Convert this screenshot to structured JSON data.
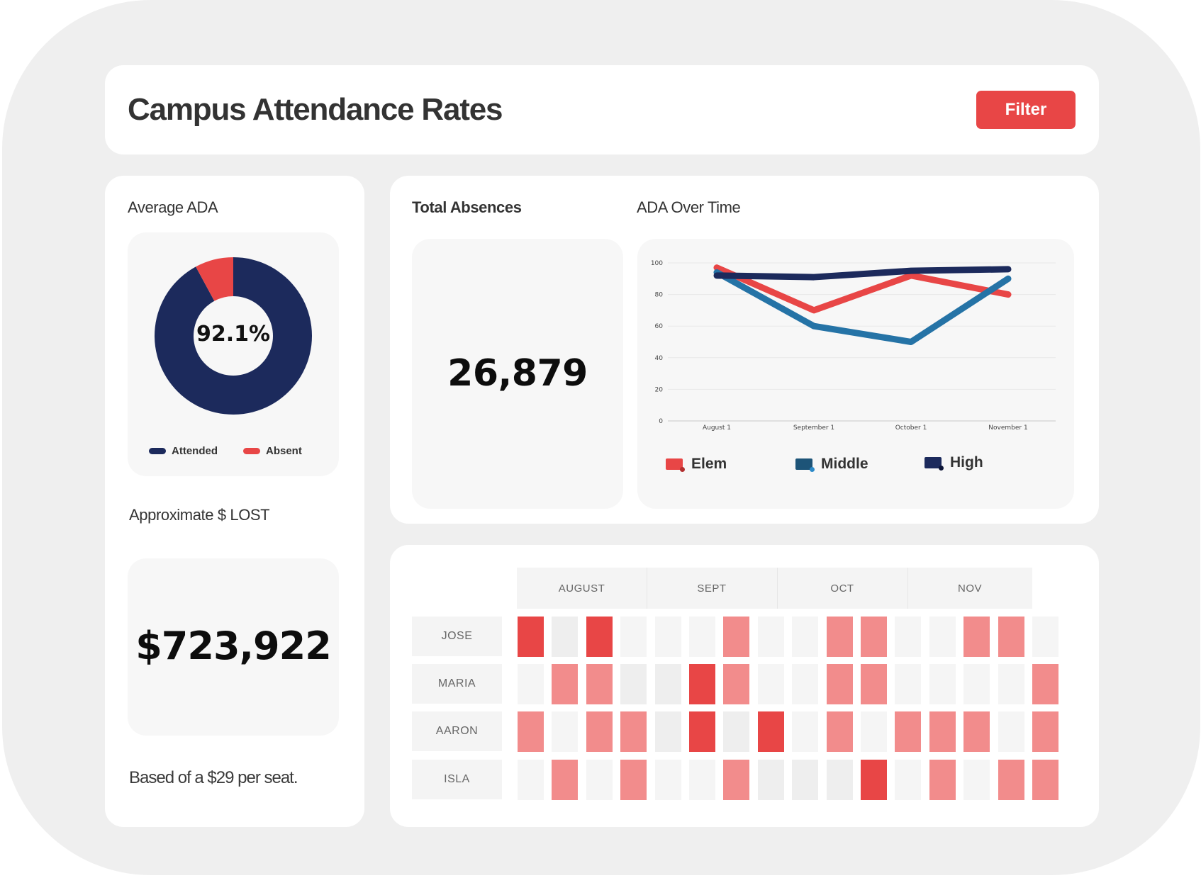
{
  "header": {
    "title": "Campus Attendance Rates",
    "filter_label": "Filter"
  },
  "colors": {
    "accent": "#e84646",
    "navy": "#1c2a5c",
    "blue": "#2573a6",
    "elem_red": "#e84646",
    "cell_empty_light": "#f5f5f5",
    "cell_empty_dark": "#eeeeee",
    "cell_light_red": "#f28c8c",
    "cell_dark_red": "#e84646"
  },
  "average_ada": {
    "title": "Average ADA",
    "center_label": "92.1%",
    "legend": [
      {
        "label": "Attended",
        "color": "#1c2a5c"
      },
      {
        "label": "Absent",
        "color": "#e84646"
      }
    ]
  },
  "approx_lost": {
    "title": "Approximate $ LOST",
    "value": "$723,922",
    "note": "Based of a $29 per seat."
  },
  "total_absences": {
    "title": "Total Absences",
    "value": "26,879"
  },
  "ada_over_time": {
    "title": "ADA Over Time"
  },
  "heatmap": {
    "months": [
      "AUGUST",
      "SEPT",
      "OCT",
      "NOV"
    ],
    "students": [
      "JOSE",
      "MARIA",
      "AARON",
      "ISLA"
    ],
    "level_legend": {
      "0": "no absence (light)",
      "1": "no absence (shaded)",
      "2": "partial absence",
      "3": "full absence"
    },
    "levels": [
      [
        3,
        1,
        3,
        0,
        0,
        0,
        2,
        0,
        0,
        2,
        2,
        0,
        0,
        2,
        2,
        0
      ],
      [
        0,
        2,
        2,
        1,
        1,
        3,
        2,
        0,
        0,
        2,
        2,
        0,
        0,
        0,
        0,
        2
      ],
      [
        2,
        0,
        2,
        2,
        1,
        3,
        1,
        3,
        0,
        2,
        0,
        2,
        2,
        2,
        0,
        2
      ],
      [
        0,
        2,
        0,
        2,
        0,
        0,
        2,
        1,
        1,
        1,
        3,
        0,
        2,
        0,
        2,
        2
      ]
    ]
  },
  "chart_data": [
    {
      "type": "pie",
      "title": "Average ADA",
      "donut": true,
      "categories": [
        "Attended",
        "Absent"
      ],
      "values": [
        92.1,
        7.9
      ],
      "colors": [
        "#1c2a5c",
        "#e84646"
      ],
      "center_label": "92.1%",
      "legend": "bottom"
    },
    {
      "type": "line",
      "title": "ADA Over Time",
      "x": [
        "August 1",
        "September 1",
        "October 1",
        "November 1"
      ],
      "series": [
        {
          "name": "Elem",
          "values": [
            97,
            70,
            92,
            80
          ],
          "color": "#e84646"
        },
        {
          "name": "Middle",
          "values": [
            94,
            60,
            50,
            90
          ],
          "color": "#2573a6"
        },
        {
          "name": "High",
          "values": [
            92,
            91,
            95,
            96
          ],
          "color": "#1c2a5c"
        }
      ],
      "yticks": [
        0,
        20,
        40,
        60,
        80,
        100
      ],
      "ylim": [
        0,
        100
      ],
      "grid": true,
      "xlabel": "",
      "ylabel": "",
      "legend": "bottom"
    }
  ]
}
